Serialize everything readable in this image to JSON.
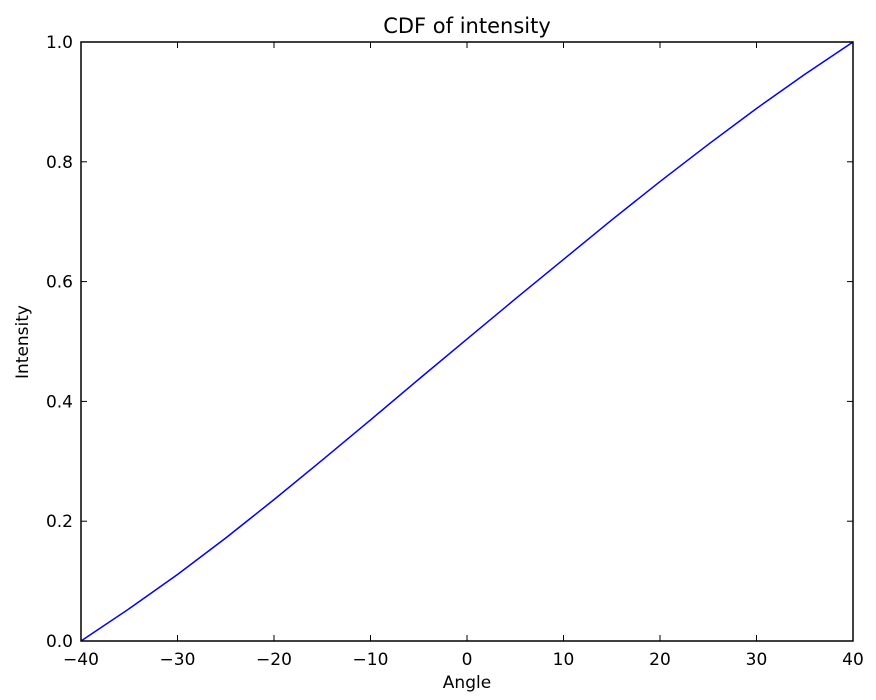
{
  "chart_data": {
    "type": "line",
    "title": "CDF of intensity",
    "xlabel": "Angle",
    "ylabel": "Intensity",
    "xlim": [
      -40,
      40
    ],
    "ylim": [
      0.0,
      1.0
    ],
    "grid": false,
    "x_ticks": [
      -40,
      -30,
      -20,
      -10,
      0,
      10,
      20,
      30,
      40
    ],
    "x_tick_labels": [
      "−40",
      "−30",
      "−20",
      "−10",
      "0",
      "10",
      "20",
      "30",
      "40"
    ],
    "y_ticks": [
      0.0,
      0.2,
      0.4,
      0.6,
      0.8,
      1.0
    ],
    "y_tick_labels": [
      "0.0",
      "0.2",
      "0.4",
      "0.6",
      "0.8",
      "1.0"
    ],
    "series": [
      {
        "color": "#0000ff",
        "x": [
          -40,
          -35,
          -30,
          -25,
          -20,
          -15,
          -10,
          -5,
          0,
          5,
          10,
          15,
          20,
          25,
          30,
          35,
          40
        ],
        "y": [
          0.0,
          0.054,
          0.111,
          0.172,
          0.236,
          0.302,
          0.369,
          0.437,
          0.504,
          0.571,
          0.637,
          0.703,
          0.767,
          0.829,
          0.889,
          0.946,
          1.0
        ]
      }
    ]
  }
}
